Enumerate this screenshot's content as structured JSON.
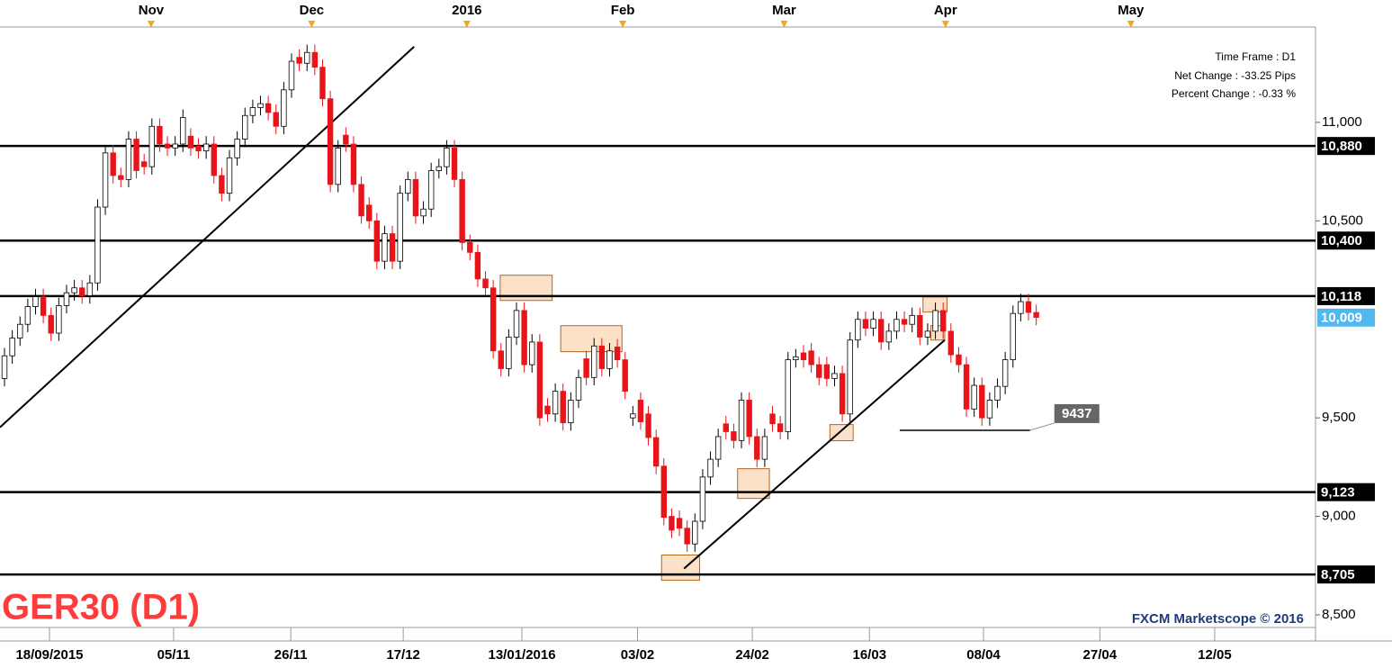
{
  "chart_data": {
    "type": "candlestick",
    "title": "GER30 (D1)",
    "watermark": "FXCM Marketscope © 2016",
    "info": [
      "Time Frame : D1",
      "Net Change : -33.25 Pips",
      "Percent Change : -0.33 %"
    ],
    "x": [
      1,
      2,
      3,
      4,
      5,
      6,
      7,
      8,
      9,
      10,
      11,
      12,
      13,
      14,
      15,
      16,
      17,
      18,
      19,
      20,
      21,
      22,
      23,
      24,
      25,
      26,
      27,
      28,
      29,
      30,
      31,
      32,
      33,
      34,
      35,
      36,
      37,
      38,
      39,
      40,
      41,
      42,
      43,
      44,
      45,
      46,
      47,
      48,
      49,
      50,
      51,
      52,
      53,
      54,
      55,
      56,
      57,
      58,
      59,
      60,
      61,
      62,
      63,
      64,
      65,
      66,
      67,
      68,
      69,
      70,
      71,
      72,
      73,
      74,
      75,
      76,
      77,
      78,
      79,
      80,
      81,
      82,
      83,
      84,
      85,
      86,
      87,
      88,
      89,
      90,
      91,
      92,
      93,
      94,
      95,
      96,
      97,
      98,
      99,
      100,
      101,
      102,
      103,
      104,
      105,
      106,
      107,
      108,
      109,
      110,
      111,
      112,
      113,
      114,
      115,
      116,
      117,
      118,
      119,
      120,
      121,
      122,
      123,
      124,
      125,
      126,
      127,
      128,
      129,
      130,
      131,
      132,
      133,
      134
    ],
    "open": [
      9700,
      9815,
      9905,
      9975,
      10065,
      10115,
      10020,
      9930,
      10070,
      10135,
      10160,
      10120,
      10185,
      10570,
      10845,
      10730,
      10710,
      10915,
      10800,
      10775,
      10980,
      10890,
      10870,
      10890,
      10930,
      10880,
      10855,
      10890,
      10730,
      10640,
      10820,
      10915,
      11035,
      11075,
      11095,
      11050,
      10980,
      11165,
      11330,
      11300,
      11355,
      11280,
      11120,
      10685,
      10935,
      10890,
      10685,
      10580,
      10500,
      10295,
      10435,
      10295,
      10640,
      10710,
      10525,
      10560,
      10755,
      10775,
      10870,
      10710,
      10390,
      10340,
      10205,
      10160,
      9840,
      9750,
      9910,
      10045,
      9770,
      9885,
      9560,
      9520,
      9635,
      9475,
      9590,
      9800,
      9705,
      9865,
      9750,
      9860,
      9795,
      9500,
      9590,
      9520,
      9400,
      9255,
      9000,
      8990,
      8940,
      8860,
      8975,
      9200,
      9290,
      9470,
      9430,
      9385,
      9590,
      9405,
      9290,
      9520,
      9470,
      9430,
      9795,
      9830,
      9840,
      9770,
      9770,
      9700,
      9725,
      9520,
      9895,
      10000,
      9955,
      10000,
      9885,
      9940,
      10000,
      9975,
      10020,
      9910,
      9940,
      10045,
      9940,
      9820,
      9770,
      9545,
      9665,
      9500,
      9590,
      9660,
      9795,
      10030,
      10090,
      10035
    ],
    "high": [
      9855,
      9945,
      10015,
      10105,
      10155,
      10155,
      10060,
      10110,
      10175,
      10200,
      10200,
      10225,
      10610,
      10885,
      10885,
      10770,
      10955,
      10955,
      10840,
      11020,
      11020,
      10930,
      10930,
      11065,
      10970,
      10920,
      10930,
      10930,
      10770,
      10860,
      10955,
      11075,
      11115,
      11135,
      11135,
      11090,
      11205,
      11350,
      11370,
      11395,
      11395,
      11320,
      11160,
      10910,
      10975,
      10930,
      10725,
      10620,
      10540,
      10475,
      10475,
      10680,
      10750,
      10750,
      10600,
      10795,
      10815,
      10910,
      10910,
      10750,
      10430,
      10380,
      10245,
      10200,
      9880,
      9950,
      10085,
      10085,
      9925,
      9925,
      9600,
      9675,
      9675,
      9630,
      9745,
      9840,
      9905,
      9905,
      9880,
      9900,
      9835,
      9560,
      9630,
      9560,
      9440,
      9295,
      9040,
      9030,
      8980,
      9015,
      9240,
      9330,
      9445,
      9510,
      9470,
      9630,
      9630,
      9445,
      9445,
      9560,
      9510,
      9835,
      9850,
      9870,
      9880,
      9810,
      9810,
      9765,
      9765,
      9935,
      10040,
      10040,
      10040,
      10040,
      9980,
      10040,
      10040,
      10060,
      10060,
      9980,
      10085,
      10085,
      9980,
      9860,
      9810,
      9705,
      9705,
      9630,
      9700,
      9835,
      10070,
      10130,
      10130,
      10075
    ],
    "low": [
      9660,
      9775,
      9865,
      9935,
      10025,
      9980,
      9890,
      9890,
      10030,
      10095,
      10080,
      10080,
      10145,
      10530,
      10690,
      10670,
      10670,
      10715,
      10735,
      10735,
      10850,
      10830,
      10830,
      10850,
      10830,
      10815,
      10815,
      10690,
      10600,
      10600,
      10780,
      10875,
      10995,
      11035,
      11010,
      10940,
      10940,
      11125,
      11260,
      11260,
      11240,
      11080,
      10645,
      10645,
      10850,
      10645,
      10485,
      10460,
      10255,
      10255,
      10255,
      10255,
      10600,
      10485,
      10485,
      10520,
      10715,
      10735,
      10670,
      10350,
      10300,
      10165,
      10120,
      9800,
      9710,
      9710,
      9870,
      9730,
      9730,
      9460,
      9480,
      9480,
      9435,
      9435,
      9550,
      9665,
      9665,
      9710,
      9710,
      9755,
      9595,
      9460,
      9440,
      9360,
      9215,
      8955,
      8890,
      8900,
      8820,
      8820,
      8935,
      9160,
      9250,
      9390,
      9345,
      9345,
      9365,
      9250,
      9250,
      9430,
      9390,
      9390,
      9755,
      9755,
      9730,
      9665,
      9660,
      9660,
      9480,
      9480,
      9855,
      9915,
      9915,
      9845,
      9845,
      9900,
      9935,
      9935,
      9870,
      9870,
      9900,
      9900,
      9780,
      9730,
      9505,
      9505,
      9460,
      9460,
      9550,
      9620,
      9755,
      9990,
      9995,
      9970
    ],
    "close": [
      9815,
      9905,
      9975,
      10065,
      10115,
      10020,
      9930,
      10070,
      10135,
      10160,
      10120,
      10185,
      10570,
      10845,
      10730,
      10710,
      10915,
      10755,
      10775,
      10980,
      10890,
      10870,
      10890,
      11025,
      10870,
      10855,
      10890,
      10730,
      10640,
      10820,
      10915,
      11035,
      11075,
      11095,
      11050,
      10980,
      11165,
      11310,
      11300,
      11355,
      11280,
      11120,
      10685,
      10870,
      10890,
      10685,
      10525,
      10500,
      10295,
      10435,
      10295,
      10640,
      10710,
      10525,
      10560,
      10755,
      10775,
      10870,
      10710,
      10390,
      10340,
      10205,
      10160,
      9840,
      9750,
      9910,
      10045,
      9770,
      9885,
      9500,
      9520,
      9635,
      9475,
      9590,
      9705,
      9705,
      9865,
      9750,
      9840,
      9795,
      9635,
      9520,
      9480,
      9400,
      9255,
      8995,
      8930,
      8940,
      8860,
      8975,
      9200,
      9290,
      9405,
      9430,
      9385,
      9590,
      9405,
      9290,
      9405,
      9470,
      9430,
      9795,
      9810,
      9795,
      9770,
      9705,
      9700,
      9725,
      9520,
      9895,
      10000,
      9955,
      10000,
      9885,
      9940,
      10000,
      9975,
      10020,
      9910,
      9940,
      10045,
      9940,
      9820,
      9770,
      9545,
      9665,
      9500,
      9590,
      9660,
      9795,
      10030,
      10090,
      10035,
      10010
    ],
    "up_color": "#ffffff",
    "down_color": "#e8141a",
    "xlim": [
      0.42,
      170.0
    ],
    "xticks": [
      {
        "value": 6.8,
        "label": "18/09/2015"
      },
      {
        "value": 22.8,
        "label": "05/11"
      },
      {
        "value": 37.9,
        "label": "26/11"
      },
      {
        "value": 52.4,
        "label": "17/12"
      },
      {
        "value": 67.7,
        "label": "13/01/2016"
      },
      {
        "value": 82.6,
        "label": "03/02"
      },
      {
        "value": 97.4,
        "label": "24/02"
      },
      {
        "value": 112.5,
        "label": "16/03"
      },
      {
        "value": 127.2,
        "label": "08/04"
      },
      {
        "value": 142.2,
        "label": "27/04"
      },
      {
        "value": 157.0,
        "label": "12/05"
      }
    ],
    "x2ticks": [
      {
        "value": 19.9,
        "label": "Nov"
      },
      {
        "value": 40.6,
        "label": "Dec"
      },
      {
        "value": 60.6,
        "label": "2016"
      },
      {
        "value": 80.7,
        "label": "Feb"
      },
      {
        "value": 101.5,
        "label": "Mar"
      },
      {
        "value": 122.3,
        "label": "Apr"
      },
      {
        "value": 146.2,
        "label": "May"
      }
    ],
    "ylim": [
      8436,
      11484
    ],
    "yticks": [
      {
        "value": 8500,
        "label": "8,500"
      },
      {
        "value": 9000,
        "label": "9,000"
      },
      {
        "value": 9500,
        "label": "9,500"
      },
      {
        "value": 10500,
        "label": "10,500"
      },
      {
        "value": 11000,
        "label": "11,000"
      }
    ],
    "grid": false,
    "levels": [
      {
        "value": 10880,
        "label": "10,880"
      },
      {
        "value": 10400,
        "label": "10,400"
      },
      {
        "value": 10118,
        "label": "10,118"
      },
      {
        "value": 9123,
        "label": "9,123"
      },
      {
        "value": 8705,
        "label": "8,705"
      }
    ],
    "last_price": {
      "value": 10009,
      "label": "10,009",
      "color": "#4fb8f0"
    },
    "annotation": {
      "value": 9437,
      "x": [
        116.4,
        133.2
      ]
    },
    "trendlines": [
      {
        "x": [
          0.42,
          53.8
        ],
        "y": [
          9452,
          11384
        ]
      },
      {
        "x": [
          88.6,
          122.2
        ],
        "y": [
          8735,
          9895
        ]
      }
    ],
    "zones": [
      {
        "x": [
          64.9,
          71.6
        ],
        "y": [
          10096,
          10224
        ]
      },
      {
        "x": [
          72.7,
          80.6
        ],
        "y": [
          9836,
          9968
        ]
      },
      {
        "x": [
          95.5,
          99.6
        ],
        "y": [
          9091,
          9242
        ]
      },
      {
        "x": [
          85.7,
          90.6
        ],
        "y": [
          8676,
          8804
        ]
      },
      {
        "x": [
          107.4,
          110.4
        ],
        "y": [
          9384,
          9466
        ]
      },
      {
        "x": [
          119.4,
          122.5
        ],
        "y": [
          10037,
          10114
        ]
      },
      {
        "x": [
          120.4,
          122.2
        ],
        "y": [
          9895,
          9968
        ]
      }
    ]
  }
}
